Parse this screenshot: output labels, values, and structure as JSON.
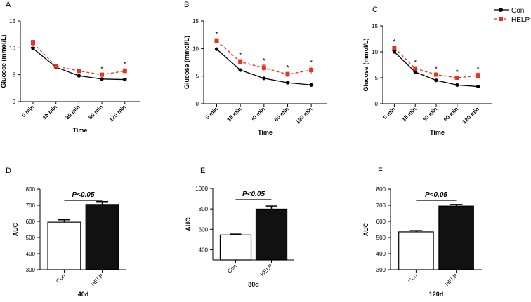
{
  "legend": {
    "entries": [
      {
        "name": "Con",
        "color": "#000000"
      },
      {
        "name": "HELP",
        "color": "#e8311f"
      }
    ],
    "placement": "top-right"
  },
  "chart_data": [
    {
      "panel": "A",
      "type": "line",
      "categories": [
        "0 min",
        "15 min",
        "30 min",
        "60 min",
        "120 min"
      ],
      "xlabel": "Time",
      "ylabel": "Glucose (mmol/L)",
      "ylim": [
        0,
        15
      ],
      "yticks": [
        "0",
        "5",
        "10",
        "15"
      ],
      "series": [
        {
          "name": "Con",
          "values": [
            9.9,
            6.4,
            4.8,
            4.2,
            4.1
          ],
          "errors": [
            0.2,
            0.2,
            0.1,
            0.1,
            0.1
          ],
          "color": "#000000",
          "dashed": false,
          "marker": "circle"
        },
        {
          "name": "HELP",
          "values": [
            10.9,
            6.6,
            5.7,
            5.0,
            5.7
          ],
          "errors": [
            0.5,
            0.2,
            0.2,
            0.3,
            0.4
          ],
          "color": "#e8311f",
          "dashed": true,
          "marker": "square"
        }
      ],
      "significance": [
        "",
        "",
        "",
        "*",
        "*"
      ]
    },
    {
      "panel": "B",
      "type": "line",
      "categories": [
        "0 min",
        "15 min",
        "30 min",
        "60 min",
        "120 min"
      ],
      "xlabel": "Time",
      "ylabel": "Glucose (mmol/L)",
      "ylim": [
        0,
        15
      ],
      "yticks": [
        "0",
        "5",
        "10",
        "15"
      ],
      "series": [
        {
          "name": "Con",
          "values": [
            9.9,
            6.1,
            4.6,
            3.8,
            3.4
          ],
          "errors": [
            0.2,
            0.1,
            0.1,
            0.1,
            0.1
          ],
          "color": "#000000",
          "dashed": false,
          "marker": "circle"
        },
        {
          "name": "HELP",
          "values": [
            11.4,
            7.6,
            6.5,
            5.3,
            6.1
          ],
          "errors": [
            0.4,
            0.4,
            0.5,
            0.4,
            0.6
          ],
          "color": "#e8311f",
          "dashed": true,
          "marker": "square"
        }
      ],
      "significance": [
        "*",
        "*",
        "*",
        "*",
        "*"
      ]
    },
    {
      "panel": "C",
      "type": "line",
      "categories": [
        "0 min",
        "15 min",
        "30 min",
        "60 min",
        "120 min"
      ],
      "xlabel": "Time",
      "ylabel": "Glucose (mmol/L)",
      "ylim": [
        0,
        15
      ],
      "yticks": [
        "0",
        "5",
        "10",
        "15"
      ],
      "series": [
        {
          "name": "Con",
          "values": [
            10.0,
            6.1,
            4.5,
            3.6,
            3.3
          ],
          "errors": [
            0.2,
            0.1,
            0.1,
            0.1,
            0.1
          ],
          "color": "#000000",
          "dashed": false,
          "marker": "circle"
        },
        {
          "name": "HELP",
          "values": [
            10.8,
            6.8,
            5.6,
            5.0,
            5.4
          ],
          "errors": [
            0.3,
            0.3,
            0.3,
            0.3,
            0.5
          ],
          "color": "#e8311f",
          "dashed": true,
          "marker": "square"
        }
      ],
      "significance": [
        "*",
        "*",
        "*",
        "*",
        "*"
      ]
    },
    {
      "panel": "D",
      "type": "bar",
      "categories": [
        "Con",
        "HELP"
      ],
      "values": [
        595,
        705
      ],
      "errors": [
        15,
        18
      ],
      "fills": [
        "#ffffff",
        "#111111"
      ],
      "ylabel": "AUC",
      "xlabel": "40d",
      "ylim": [
        300,
        800
      ],
      "yticks": [
        "300",
        "400",
        "500",
        "600",
        "700",
        "800"
      ],
      "annotation": "P<0.05"
    },
    {
      "panel": "E",
      "type": "bar",
      "categories": [
        "Con",
        "HELP"
      ],
      "values": [
        545,
        798
      ],
      "errors": [
        8,
        30
      ],
      "fills": [
        "#ffffff",
        "#111111"
      ],
      "ylabel": "AUC",
      "xlabel": "80d",
      "ylim": [
        300,
        1000
      ],
      "yticks": [
        "400",
        "600",
        "800",
        "1000"
      ],
      "annotation": "P<0.05"
    },
    {
      "panel": "F",
      "type": "bar",
      "categories": [
        "Con",
        "HELP"
      ],
      "values": [
        535,
        695
      ],
      "errors": [
        8,
        10
      ],
      "fills": [
        "#ffffff",
        "#111111"
      ],
      "ylabel": "AUC",
      "xlabel": "120d",
      "ylim": [
        300,
        800
      ],
      "yticks": [
        "300",
        "400",
        "500",
        "600",
        "700",
        "800"
      ],
      "annotation": "P<0.05"
    }
  ]
}
